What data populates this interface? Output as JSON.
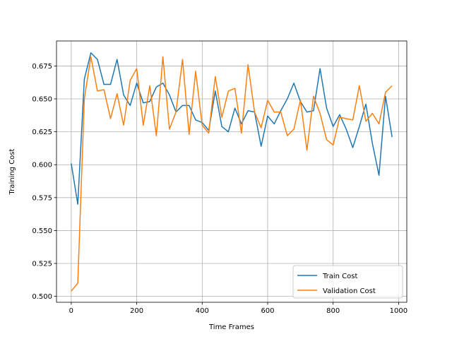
{
  "chart_data": {
    "type": "line",
    "xlabel": "Time Frames",
    "ylabel": "Training Cost",
    "xlim": [
      -45,
      1025
    ],
    "ylim": [
      0.4955,
      0.694
    ],
    "xticks": [
      0,
      200,
      400,
      600,
      800,
      1000
    ],
    "xtick_labels": [
      "0",
      "200",
      "400",
      "600",
      "800",
      "1000"
    ],
    "yticks": [
      0.5,
      0.525,
      0.55,
      0.575,
      0.6,
      0.625,
      0.65,
      0.675
    ],
    "ytick_labels": [
      "0.500",
      "0.525",
      "0.550",
      "0.575",
      "0.600",
      "0.625",
      "0.650",
      "0.675"
    ],
    "grid": true,
    "legend_position": "lower right",
    "x": [
      0,
      20,
      40,
      60,
      80,
      100,
      120,
      140,
      160,
      180,
      200,
      220,
      240,
      260,
      280,
      300,
      320,
      340,
      360,
      380,
      400,
      420,
      440,
      460,
      480,
      500,
      520,
      540,
      560,
      580,
      600,
      620,
      640,
      660,
      680,
      700,
      720,
      740,
      760,
      780,
      800,
      820,
      840,
      860,
      880,
      900,
      920,
      940,
      960,
      980
    ],
    "series": [
      {
        "name": "Train Cost",
        "color": "#1f77b4",
        "values": [
          0.601,
          0.57,
          0.665,
          0.685,
          0.68,
          0.661,
          0.661,
          0.68,
          0.653,
          0.645,
          0.662,
          0.647,
          0.648,
          0.659,
          0.662,
          0.653,
          0.64,
          0.645,
          0.645,
          0.634,
          0.632,
          0.626,
          0.656,
          0.629,
          0.625,
          0.643,
          0.631,
          0.641,
          0.64,
          0.614,
          0.637,
          0.631,
          0.641,
          0.65,
          0.662,
          0.648,
          0.64,
          0.641,
          0.673,
          0.643,
          0.629,
          0.638,
          0.627,
          0.613,
          0.629,
          0.646,
          0.616,
          0.592,
          0.652,
          0.621
        ]
      },
      {
        "name": "Validation Cost",
        "color": "#ff7f0e",
        "values": [
          0.504,
          0.51,
          0.65,
          0.682,
          0.656,
          0.657,
          0.635,
          0.654,
          0.63,
          0.664,
          0.673,
          0.63,
          0.66,
          0.622,
          0.682,
          0.627,
          0.64,
          0.68,
          0.623,
          0.671,
          0.63,
          0.624,
          0.667,
          0.636,
          0.656,
          0.658,
          0.624,
          0.676,
          0.64,
          0.628,
          0.649,
          0.64,
          0.64,
          0.622,
          0.627,
          0.649,
          0.611,
          0.652,
          0.639,
          0.619,
          0.615,
          0.636,
          0.635,
          0.634,
          0.66,
          0.633,
          0.639,
          0.631,
          0.655,
          0.66
        ]
      }
    ]
  }
}
